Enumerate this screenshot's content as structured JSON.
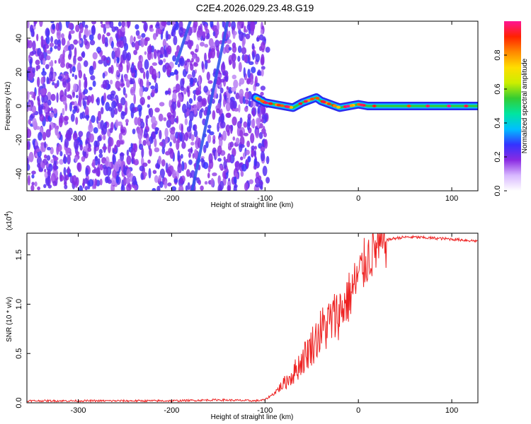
{
  "title": "C2E4.2026.029.23.48.G19",
  "chart_data": [
    {
      "type": "heatmap",
      "xlabel": "Height of straight line (km)",
      "ylabel": "Frequency (Hz)",
      "xlim": [
        -355,
        128
      ],
      "ylim": [
        -50,
        50
      ],
      "x_ticks": [
        -300,
        -200,
        -100,
        0,
        100
      ],
      "x_tick_labels": [
        "-300",
        "-200",
        "-100",
        "0",
        "100"
      ],
      "y_ticks": [
        -40,
        -20,
        0,
        20,
        40
      ],
      "y_tick_labels": [
        "-40",
        "-20",
        "0",
        "20",
        "40"
      ],
      "noise_region_x": [
        -355,
        -100
      ],
      "signal_track": {
        "x": [
          -110,
          -100,
          -90,
          -80,
          -70,
          -60,
          -50,
          -45,
          -40,
          -35,
          -30,
          -20,
          -10,
          0,
          10,
          30,
          60,
          90,
          128
        ],
        "frequency": [
          5,
          2,
          1,
          0,
          -1,
          2,
          4,
          5,
          3,
          2,
          1,
          -1,
          0,
          1,
          0,
          0,
          0,
          0,
          0
        ]
      },
      "streak_lines": [
        {
          "x_start": -178,
          "y_start": -50,
          "x_end": -140,
          "y_end": 50
        },
        {
          "x_start": -195,
          "y_start": 25,
          "x_end": -180,
          "y_end": 50
        }
      ],
      "colorbar": {
        "label": "Normalized spectral amplitude",
        "range": [
          0,
          1
        ],
        "ticks": [
          0.0,
          0.2,
          0.4,
          0.6,
          0.8
        ],
        "tick_labels": [
          "0.0",
          "0.2",
          "0.4",
          "0.6",
          "0.8"
        ],
        "colors": [
          "#ffffff",
          "#d8b8ff",
          "#8a2be2",
          "#3333ff",
          "#00bfff",
          "#00e5a0",
          "#33cc33",
          "#ccee00",
          "#ffdd00",
          "#ff8800",
          "#ff2200",
          "#ff1493"
        ]
      }
    },
    {
      "type": "line",
      "xlabel": "Height of straight line (km)",
      "ylabel": "SNR (10 * v/v)",
      "scale_label": "(x10",
      "scale_exponent": "4",
      "scale_suffix": ")",
      "xlim": [
        -355,
        128
      ],
      "ylim": [
        0,
        1.72
      ],
      "x_ticks": [
        -300,
        -200,
        -100,
        0,
        100
      ],
      "x_tick_labels": [
        "-300",
        "-200",
        "-100",
        "0",
        "100"
      ],
      "y_ticks": [
        0,
        0.5,
        1.0,
        1.5
      ],
      "y_tick_labels": [
        "0.0",
        "0.5",
        "1.0",
        "1.5"
      ],
      "series": [
        {
          "name": "SNR",
          "color": "#ee2222",
          "x": [
            -355,
            -300,
            -250,
            -200,
            -150,
            -110,
            -100,
            -90,
            -80,
            -70,
            -60,
            -50,
            -40,
            -30,
            -20,
            -10,
            0,
            10,
            20,
            30,
            40,
            50,
            60,
            80,
            100,
            128
          ],
          "y": [
            0.02,
            0.02,
            0.02,
            0.02,
            0.03,
            0.02,
            0.03,
            0.1,
            0.2,
            0.3,
            0.45,
            0.6,
            0.75,
            0.85,
            0.95,
            1.1,
            1.3,
            1.5,
            1.6,
            1.65,
            1.67,
            1.68,
            1.68,
            1.67,
            1.66,
            1.64
          ]
        }
      ]
    }
  ]
}
